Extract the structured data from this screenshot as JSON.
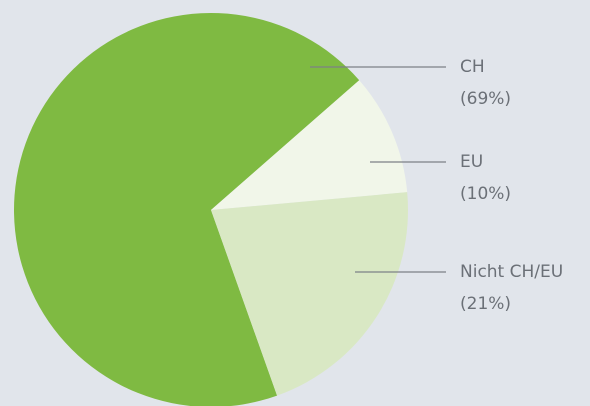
{
  "chart_data": {
    "type": "pie",
    "categories": [
      "CH",
      "EU",
      "Nicht CH/EU"
    ],
    "values": [
      69,
      10,
      21
    ],
    "value_labels": [
      "(69%)",
      "(10%)",
      "(21%)"
    ],
    "colors": [
      "#7fba42",
      "#f1f6e9",
      "#d9e8c4"
    ]
  }
}
